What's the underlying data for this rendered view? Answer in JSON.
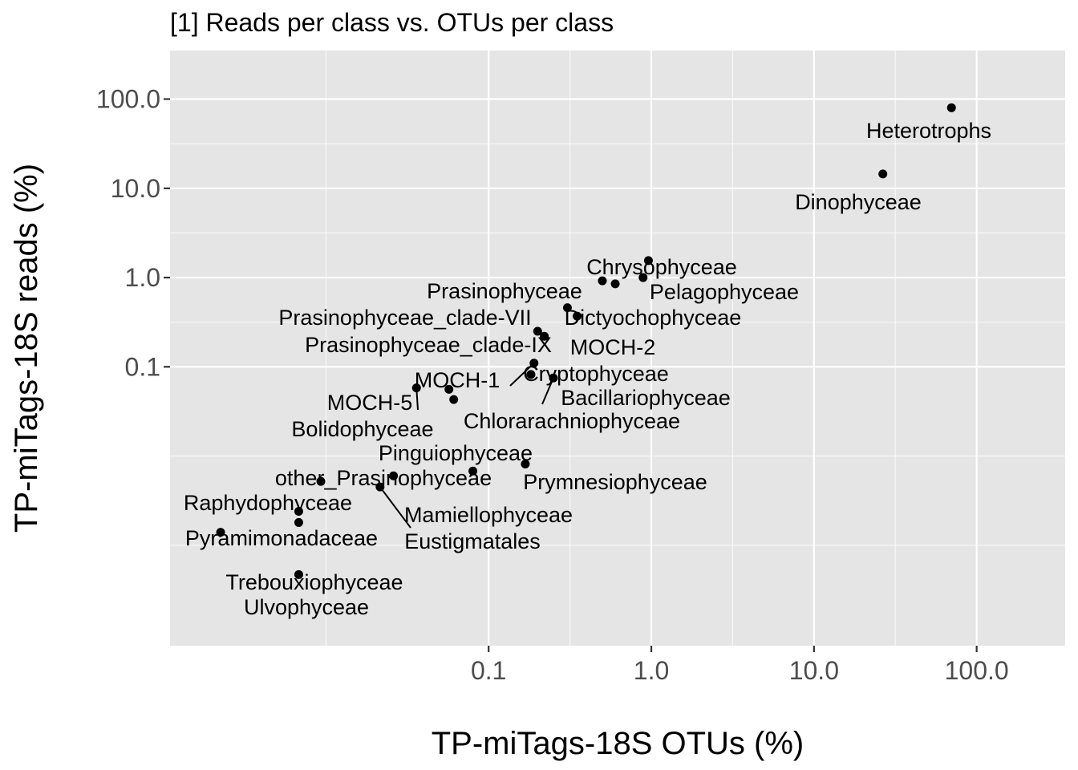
{
  "chart_data": {
    "type": "scatter",
    "title": "[1] Reads per class vs. OTUs per class",
    "xlabel": "TP-miTags-18S OTUs (%)",
    "ylabel": "TP-miTags-18S reads (%)",
    "x_scale": "log10",
    "y_scale": "log10",
    "xlim": [
      0.0011,
      350
    ],
    "ylim": [
      7.5e-05,
      350
    ],
    "x_ticks": [
      0.1,
      1,
      10,
      100
    ],
    "x_tick_labels": [
      "0.1",
      "1.0",
      "10.0",
      "100.0"
    ],
    "y_ticks": [
      0.1,
      1,
      10,
      100
    ],
    "y_tick_labels": [
      "0.1",
      "1.0",
      "10.0",
      "100.0"
    ],
    "x_minor_ticks": [
      0.01,
      0.3162,
      3.162,
      31.62
    ],
    "y_minor_ticks": [
      0.01,
      0.001,
      0.3162,
      3.162,
      31.62
    ],
    "grid": true,
    "legend": "none",
    "points": [
      {
        "label": "Heterotrophs",
        "x": 70,
        "y": 80
      },
      {
        "label": "Dinophyceae",
        "x": 26.5,
        "y": 14.5
      },
      {
        "label": "Chrysophyceae",
        "x": 0.96,
        "y": 1.55
      },
      {
        "label": "Pelagophyceae",
        "x": 0.89,
        "y": 1.0
      },
      {
        "label": "Prasinophyceae",
        "x": 0.5,
        "y": 0.92
      },
      {
        "label": "Dictyochophyceae",
        "x": 0.6,
        "y": 0.85
      },
      {
        "label": "Prasinophyceae_clade-VII",
        "x": 0.305,
        "y": 0.46
      },
      {
        "label": "MOCH-2",
        "x": 0.35,
        "y": 0.37
      },
      {
        "label": "Prasinophyceae_clade-IX",
        "x": 0.2,
        "y": 0.25
      },
      {
        "label": "Cryptophyceae",
        "x": 0.22,
        "y": 0.22
      },
      {
        "label": "MOCH-1",
        "x": 0.19,
        "y": 0.11
      },
      {
        "label": "Bacillariophyceae",
        "x": 0.25,
        "y": 0.075
      },
      {
        "label": "Pinguiophyceae",
        "x": 0.182,
        "y": 0.082
      },
      {
        "label": "MOCH-5",
        "x": 0.036,
        "y": 0.058
      },
      {
        "label": "Chlorarachniophyceae",
        "x": 0.057,
        "y": 0.056
      },
      {
        "label": "Bolidophyceae",
        "x": 0.061,
        "y": 0.043
      },
      {
        "label": "Prymnesiophyceae",
        "x": 0.168,
        "y": 0.00815
      },
      {
        "label": "Mamiellophyceae",
        "x": 0.08,
        "y": 0.0068
      },
      {
        "label": "other_Prasinophyceae",
        "x": 0.026,
        "y": 0.006
      },
      {
        "label": "Eustigmatales",
        "x": 0.0215,
        "y": 0.0045
      },
      {
        "label": "Raphydophyceae",
        "x": 0.0093,
        "y": 0.0052
      },
      {
        "label": "Pyramimonadaceae",
        "x": 0.0068,
        "y": 0.0024
      },
      {
        "label": "Trebouxiophyceae",
        "x": 0.00225,
        "y": 0.0014
      },
      {
        "label": "Ulvophyceae",
        "x": 0.0068,
        "y": 0.0018
      },
      {
        "label": "",
        "x": 0.0068,
        "y": 0.00047
      }
    ],
    "colors": {
      "panel_background": "#e5e5e5",
      "grid_major": "#ffffff",
      "point": "#000000"
    }
  }
}
